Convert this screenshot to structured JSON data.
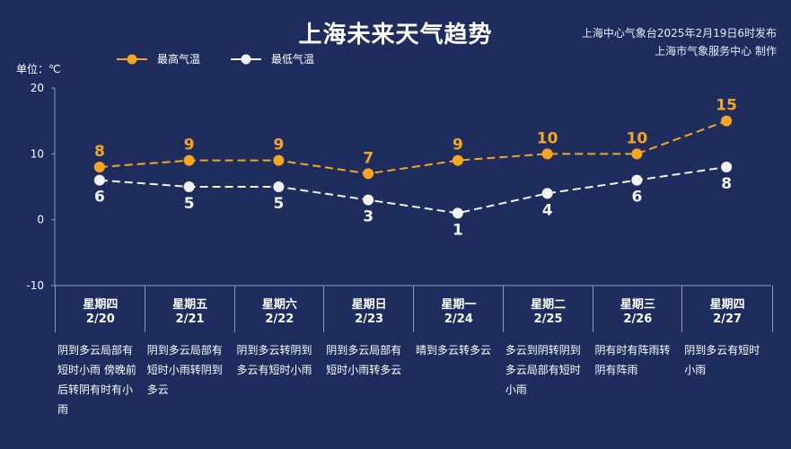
{
  "header": {
    "title": "上海未来天气趋势",
    "source_line1": "上海中心气象台2025年2月19日6时发布",
    "source_line2": "上海市气象服务中心 制作"
  },
  "unit_label": "单位：℃",
  "colors": {
    "background": "#1e2d5e",
    "high": "#f5a623",
    "low": "#f2f2f2",
    "axis": "#8a97c2"
  },
  "chart_data": {
    "type": "line",
    "title": "上海未来天气趋势",
    "ylabel": "单位：℃",
    "ylim": [
      -10,
      20
    ],
    "yticks": [
      -10,
      0,
      10,
      20
    ],
    "legend_position": "top-left",
    "categories": [
      "2/20",
      "2/21",
      "2/22",
      "2/23",
      "2/24",
      "2/25",
      "2/26",
      "2/27"
    ],
    "series": [
      {
        "name": "最高气温",
        "values": [
          8,
          9,
          9,
          7,
          9,
          10,
          10,
          15
        ],
        "color": "#f5a623"
      },
      {
        "name": "最低气温",
        "values": [
          6,
          5,
          5,
          3,
          1,
          4,
          6,
          8
        ],
        "color": "#f2f2f2"
      }
    ]
  },
  "days": [
    {
      "weekday": "星期四",
      "date": "2/20",
      "desc": "阴到多云局部有短时小雨 傍晚前后转阴有时有小雨"
    },
    {
      "weekday": "星期五",
      "date": "2/21",
      "desc": "阴到多云局部有短时小雨转阴到多云"
    },
    {
      "weekday": "星期六",
      "date": "2/22",
      "desc": "阴到多云转阴到多云有短时小雨"
    },
    {
      "weekday": "星期日",
      "date": "2/23",
      "desc": "阴到多云局部有短时小雨转多云"
    },
    {
      "weekday": "星期一",
      "date": "2/24",
      "desc": "晴到多云转多云"
    },
    {
      "weekday": "星期二",
      "date": "2/25",
      "desc": "多云到阴转阴到多云局部有短时小雨"
    },
    {
      "weekday": "星期三",
      "date": "2/26",
      "desc": "阴有时有阵雨转阴有阵雨"
    },
    {
      "weekday": "星期四",
      "date": "2/27",
      "desc": "阴到多云有短时小雨"
    }
  ]
}
